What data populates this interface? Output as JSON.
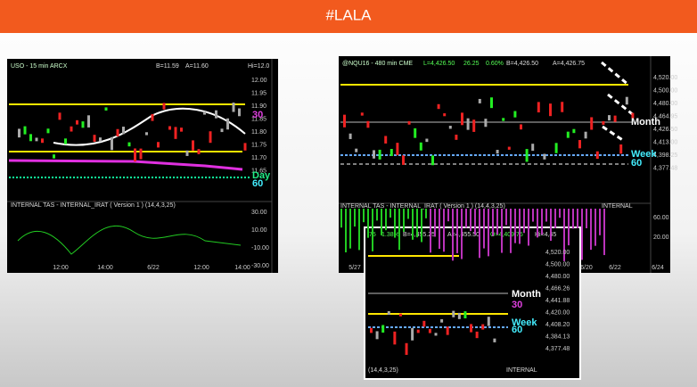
{
  "header": {
    "title": "#LALA"
  },
  "left_chart": {
    "symbol": "USO - 15 min ARCX",
    "bid": "B=11.59",
    "ask": "A=11.60",
    "hi": "Hi=12.0",
    "price_labels": [
      "12.00",
      "11.95",
      "11.90",
      "11.85",
      "11.80",
      "11.75",
      "11.70",
      "11.65"
    ],
    "level_labels": [
      "30",
      "Day",
      "60"
    ],
    "indicator": "INTERNAL TAS - INTERNAL_IRAT ( Version 1 ) (14,4,3,25)",
    "indicator_labels": [
      "30.00",
      "10.00",
      "-10.00",
      "-30.00"
    ],
    "time_labels": [
      "12:00",
      "14:00",
      "6/22",
      "12:00",
      "14:00"
    ]
  },
  "right_chart": {
    "symbol": "@NQU16 - 480 min CME",
    "last": "L=4,426.50",
    "change": "26.25",
    "pct": "0.60%",
    "bid": "B=4,426.50",
    "ask": "A=4,426.75",
    "price_labels": [
      "4,520.00",
      "4,500.00",
      "4,480.00",
      "4,464.95",
      "4,426.50",
      "4,413.00",
      "4,398.25",
      "4,377.48"
    ],
    "level_labels": [
      "Month",
      "Week",
      "60"
    ],
    "indicator": "INTERNAL TAS - INTERNAL_IRAT ( Version 1 ) (14,4,3,25)",
    "indicator_tag": "INTERNAL",
    "indicator_labels": [
      "60.00",
      "20.00"
    ],
    "time_labels": [
      "5/27",
      "6/20",
      "6/22",
      "6/24"
    ]
  },
  "inset_chart": {
    "change": "75",
    "pct": "1.38%",
    "bid": "B=4,455.25",
    "ask": "A=4,455.50",
    "open": "O=4,409.75",
    "hi": "Hi=4,45",
    "price_labels": [
      "4,520.00",
      "4,500.00",
      "4,480.00",
      "4,466.26",
      "4,441.88",
      "4,420.00",
      "4,408.20",
      "4,384.13",
      "4,377.48"
    ],
    "level_labels": [
      "Month",
      "30",
      "Week",
      "60"
    ],
    "indicator": "(14,4,3,25)",
    "indicator_tag": "INTERNAL"
  }
}
